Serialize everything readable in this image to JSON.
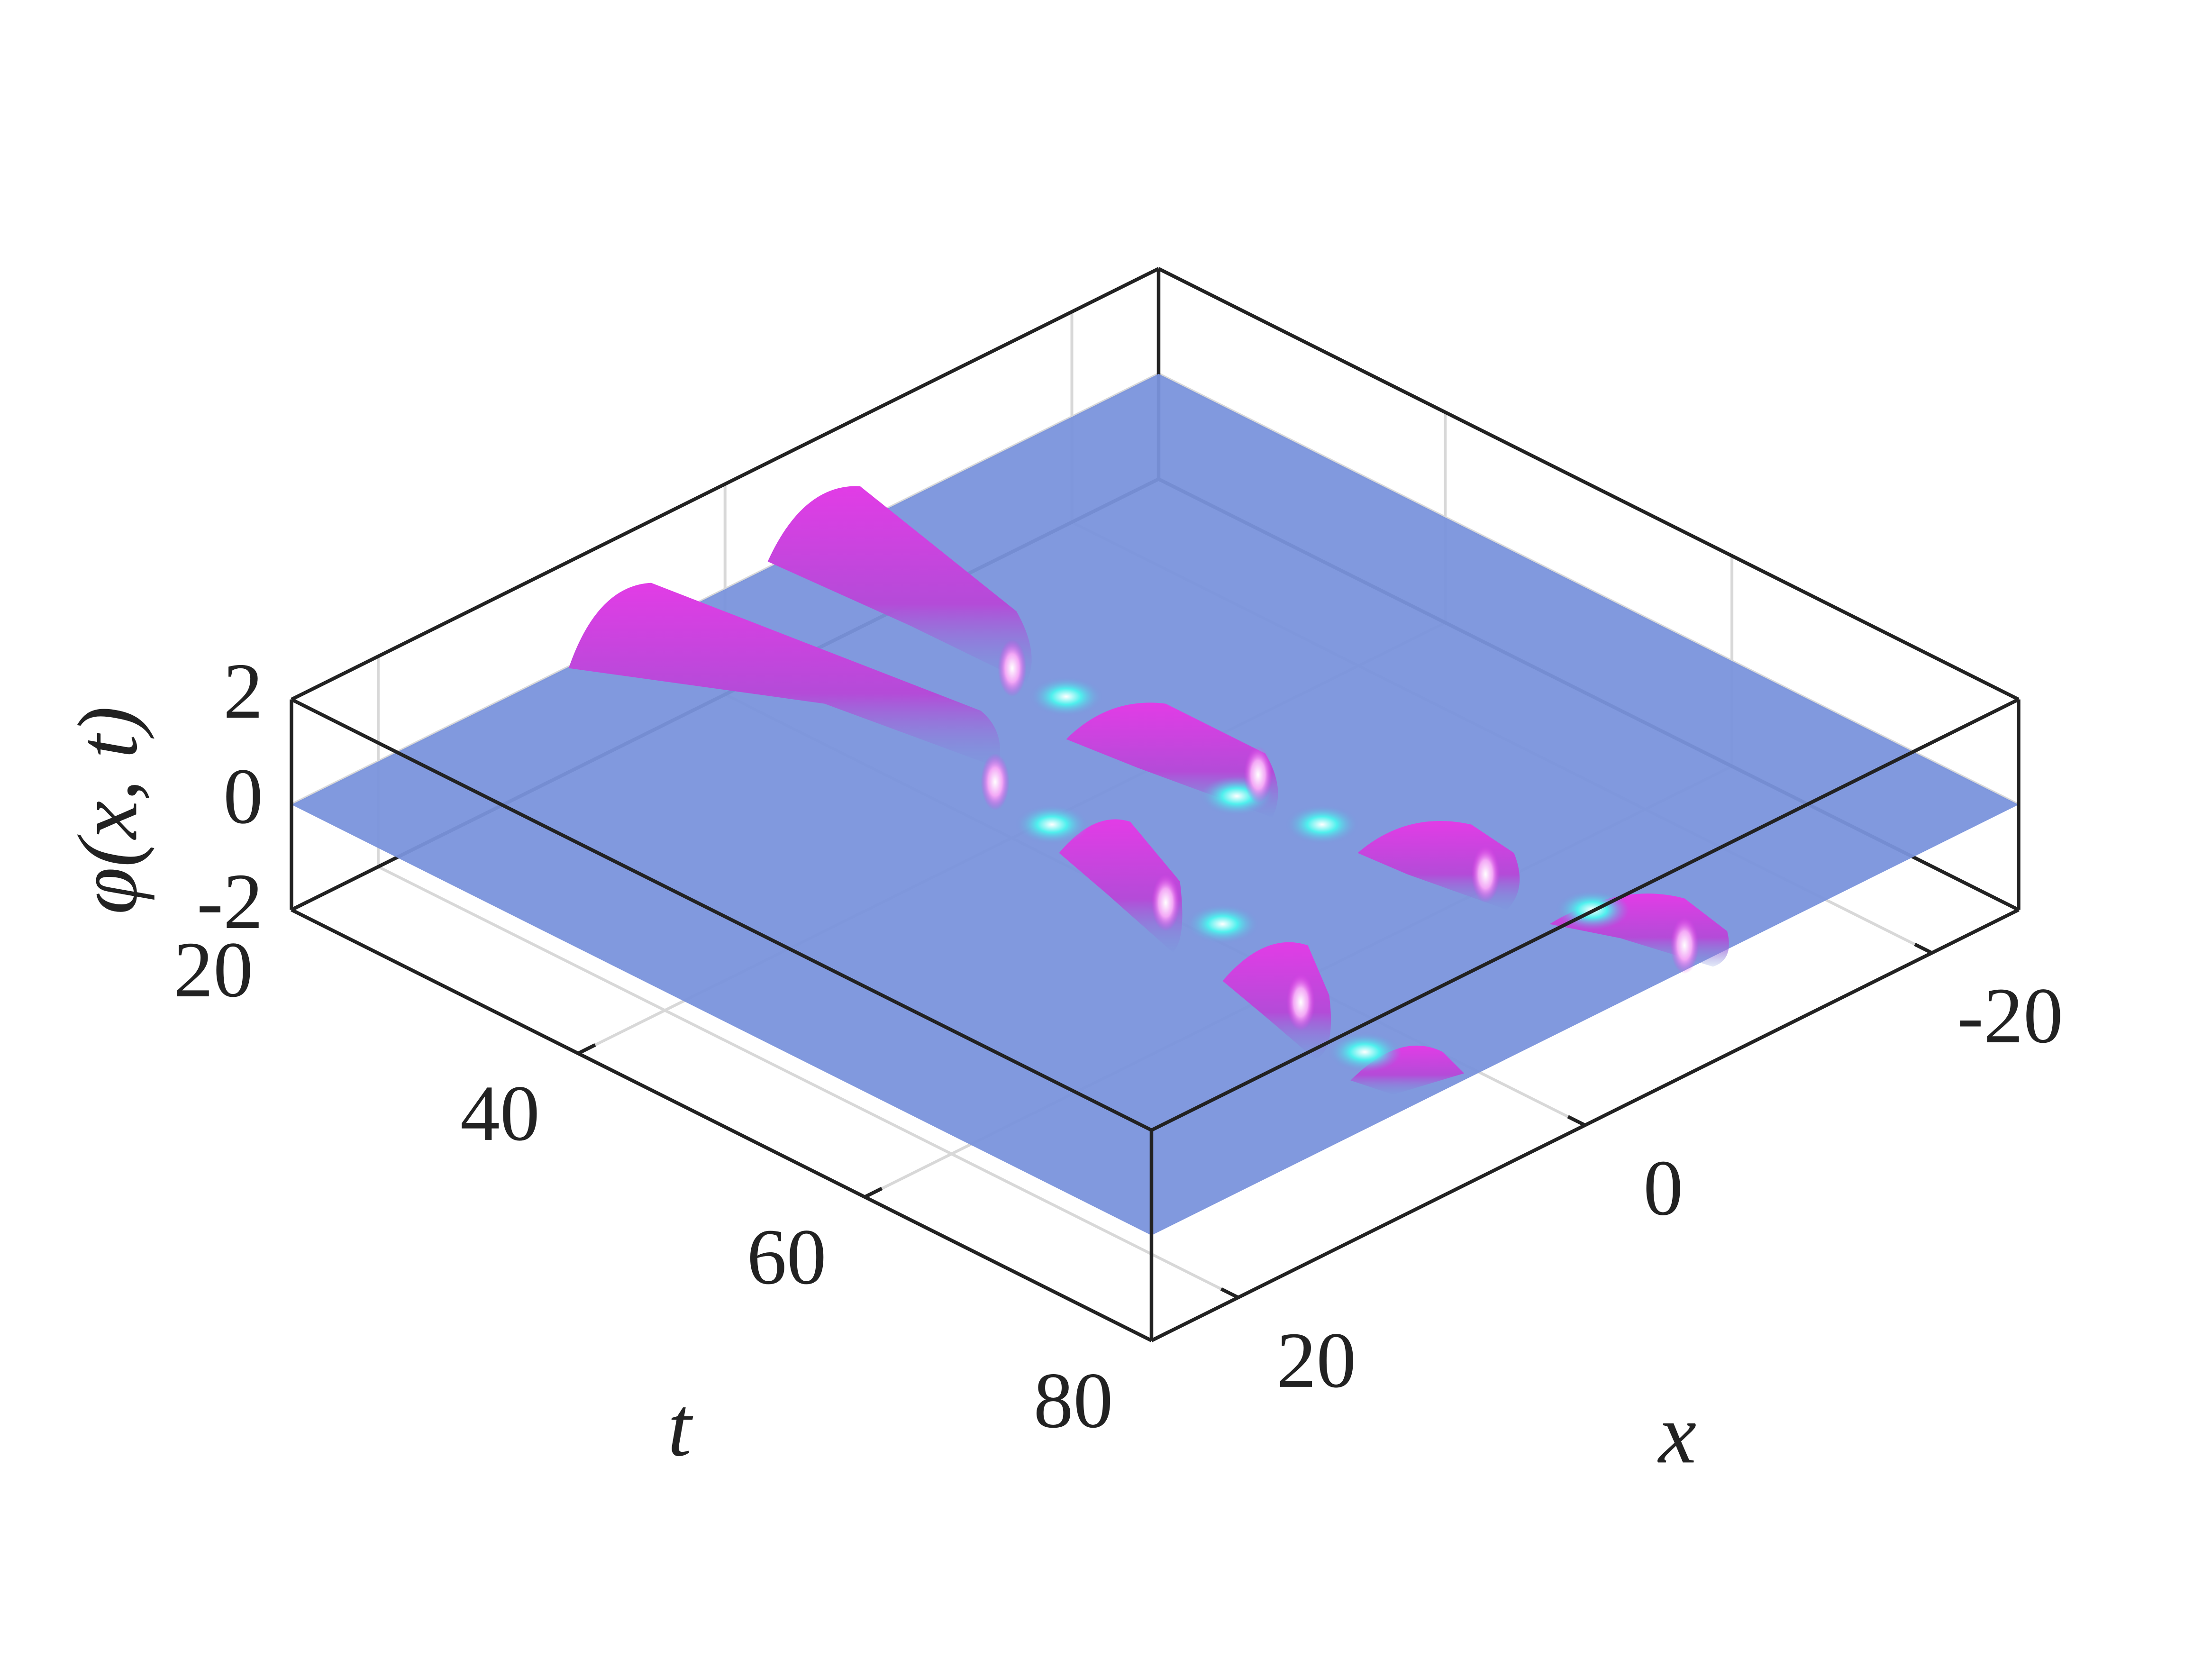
{
  "chart_data": {
    "type": "surface3d",
    "xlabel": "x",
    "ylabel": "t",
    "zlabel": "φ(x, t)",
    "xlim": [
      25,
      -25
    ],
    "xticks": [
      -20,
      0,
      20
    ],
    "ylim": [
      20,
      80
    ],
    "yticks": [
      20,
      40,
      60,
      80
    ],
    "zlim": [
      -2,
      2
    ],
    "zticks": [
      -2,
      0,
      2
    ],
    "grid": true,
    "color": "#7a93dc"
  }
}
